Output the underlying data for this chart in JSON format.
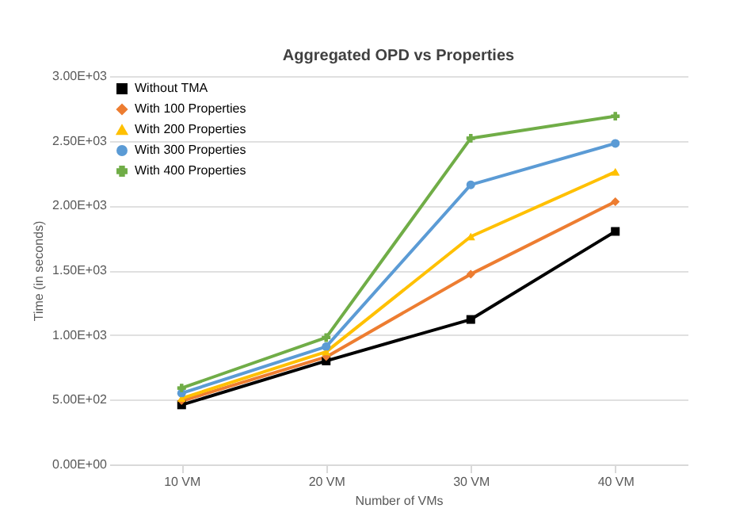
{
  "chart_data": {
    "type": "line",
    "title": "Aggregated OPD vs Properties",
    "xlabel": "Number of VMs",
    "ylabel": "Time (in seconds)",
    "categories": [
      "10 VM",
      "20 VM",
      "30 VM",
      "40 VM"
    ],
    "series": [
      {
        "name": "Without TMA",
        "color": "#000000",
        "marker": "square",
        "values": [
          460,
          800,
          1120,
          1800
        ]
      },
      {
        "name": "With 100 Properties",
        "color": "#ed7d31",
        "marker": "diamond",
        "values": [
          490,
          830,
          1470,
          2030
        ]
      },
      {
        "name": "With 200 Properties",
        "color": "#ffc000",
        "marker": "triangle",
        "values": [
          510,
          870,
          1760,
          2260
        ]
      },
      {
        "name": "With 300 Properties",
        "color": "#5b9bd5",
        "marker": "circle",
        "values": [
          550,
          910,
          2160,
          2480
        ]
      },
      {
        "name": "With 400 Properties",
        "color": "#70ad47",
        "marker": "cross",
        "values": [
          590,
          980,
          2520,
          2690
        ]
      }
    ],
    "ylim": [
      0,
      3000
    ],
    "yticks": [
      {
        "value": 0,
        "label": "0.00E+00"
      },
      {
        "value": 500,
        "label": "5.00E+02"
      },
      {
        "value": 1000,
        "label": "1.00E+03"
      },
      {
        "value": 1500,
        "label": "1.50E+03"
      },
      {
        "value": 2000,
        "label": "2.00E+03"
      },
      {
        "value": 2500,
        "label": "2.50E+03"
      },
      {
        "value": 3000,
        "label": "3.00E+03"
      }
    ],
    "grid": "y",
    "legend": "top left",
    "line_style": "solid"
  }
}
